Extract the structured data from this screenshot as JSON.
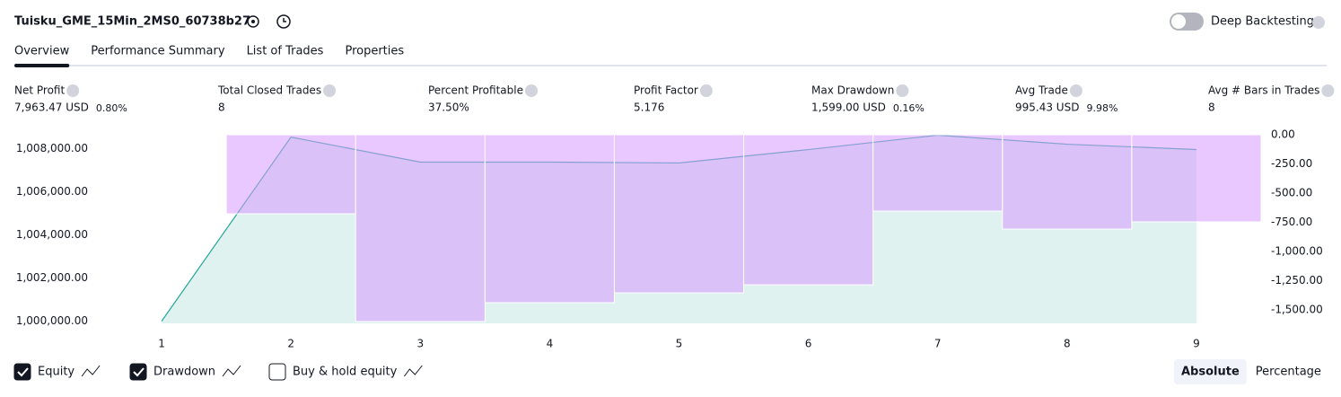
{
  "header": {
    "title": "Tuisku_GME_15Min_2MS0_60738b27",
    "toggle_label": "Deep Backtesting"
  },
  "tabs": [
    "Overview",
    "Performance Summary",
    "List of Trades",
    "Properties"
  ],
  "active_tab": 0,
  "metrics": [
    {
      "label": "Net Profit",
      "value": "7,963.47 USD",
      "pct": "0.80%",
      "color": "#089981"
    },
    {
      "label": "Total Closed Trades",
      "value": "8",
      "color": "#131722"
    },
    {
      "label": "Percent Profitable",
      "value": "37.50%",
      "color": "#089981"
    },
    {
      "label": "Profit Factor",
      "value": "5.176",
      "color": "#089981"
    },
    {
      "label": "Max Drawdown",
      "value": "1,599.00 USD",
      "pct": "0.16%",
      "color": "#f23645"
    },
    {
      "label": "Avg Trade",
      "value": "995.43 USD",
      "pct": "9.98%",
      "color": "#089981"
    },
    {
      "label": "Avg # Bars in Trades",
      "value": "8",
      "color": "#131722"
    }
  ],
  "chart_data": {
    "type": "equity-drawdown",
    "categories": [
      "1",
      "2",
      "3",
      "4",
      "5",
      "6",
      "7",
      "8",
      "9"
    ],
    "series": [
      {
        "name": "Equity",
        "color": "#26a69a",
        "values": [
          1000000,
          1008540,
          1007380,
          1007380,
          1007340,
          1007960,
          1008630,
          1008210,
          1007963.47
        ]
      },
      {
        "name": "Drawdown",
        "color": "#d59bff",
        "axis": "y2",
        "values": [
          0,
          -677,
          -1599,
          -1438,
          -1354,
          -1285,
          -654,
          -808,
          -746
        ]
      }
    ],
    "ylim": [
      999900,
      1008650
    ],
    "yticks": [
      {
        "value": 1000000,
        "label": "1,000,000.00"
      },
      {
        "value": 1002000,
        "label": "1,002,000.00"
      },
      {
        "value": 1004000,
        "label": "1,004,000.00"
      },
      {
        "value": 1006000,
        "label": "1,006,000.00"
      },
      {
        "value": 1008000,
        "label": "1,008,000.00"
      }
    ],
    "y2lim": [
      -1615,
      0
    ],
    "y2ticks": [
      {
        "value": 0,
        "label": "0.00"
      },
      {
        "value": -250,
        "label": "-250.00"
      },
      {
        "value": -500,
        "label": "-500.00"
      },
      {
        "value": -750,
        "label": "-750.00"
      },
      {
        "value": -1000,
        "label": "-1,000.00"
      },
      {
        "value": -1250,
        "label": "-1,250.00"
      },
      {
        "value": -1500,
        "label": "-1,500.00"
      }
    ],
    "legend": [
      {
        "label": "Equity",
        "checked": true
      },
      {
        "label": "Drawdown",
        "checked": true
      },
      {
        "label": "Buy & hold equity",
        "checked": false
      }
    ],
    "modes": [
      "Absolute",
      "Percentage"
    ],
    "active_mode": 0
  }
}
